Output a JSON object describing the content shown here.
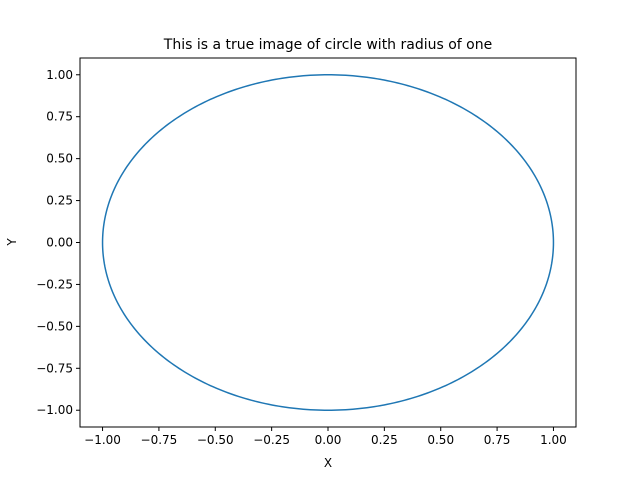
{
  "chart_data": {
    "type": "line",
    "title": "This is a true image of circle with radius of one",
    "xlabel": "X",
    "ylabel": "Y",
    "xlim": [
      -1.1,
      1.1
    ],
    "ylim": [
      -1.1,
      1.1
    ],
    "grid": false,
    "xticks": [
      "−1.00",
      "−0.75",
      "−0.50",
      "−0.25",
      "0.00",
      "0.25",
      "0.50",
      "0.75",
      "1.00"
    ],
    "xtick_values": [
      -1.0,
      -0.75,
      -0.5,
      -0.25,
      0.0,
      0.25,
      0.5,
      0.75,
      1.0
    ],
    "yticks": [
      "−1.00",
      "−0.75",
      "−0.50",
      "−0.25",
      "0.00",
      "0.25",
      "0.50",
      "0.75",
      "1.00"
    ],
    "ytick_values": [
      -1.0,
      -0.75,
      -0.5,
      -0.25,
      0.0,
      0.25,
      0.5,
      0.75,
      1.0
    ],
    "series": [
      {
        "color": "#1f77b4",
        "curve": "circle",
        "center": [
          0,
          0
        ],
        "radius": 1
      }
    ]
  }
}
